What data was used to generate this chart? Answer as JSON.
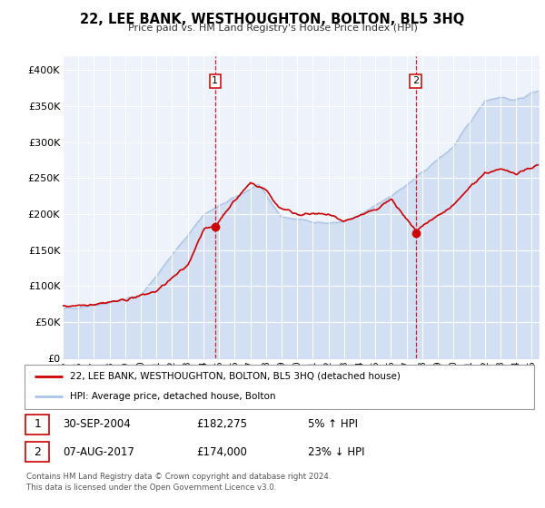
{
  "title": "22, LEE BANK, WESTHOUGHTON, BOLTON, BL5 3HQ",
  "subtitle": "Price paid vs. HM Land Registry's House Price Index (HPI)",
  "ylim": [
    0,
    420000
  ],
  "xlim_start": 1995.0,
  "xlim_end": 2025.5,
  "yticks": [
    0,
    50000,
    100000,
    150000,
    200000,
    250000,
    300000,
    350000,
    400000
  ],
  "ytick_labels": [
    "£0",
    "£50K",
    "£100K",
    "£150K",
    "£200K",
    "£250K",
    "£300K",
    "£350K",
    "£400K"
  ],
  "plot_bg_color": "#eef2fb",
  "hpi_color": "#aac4e8",
  "hpi_fill_color": "#c8d8f0",
  "price_color": "#cc0000",
  "marker1_x": 2004.75,
  "marker1_y": 182275,
  "marker2_x": 2017.58,
  "marker2_y": 174000,
  "annotation1_label": "1",
  "annotation1_date": "30-SEP-2004",
  "annotation1_price": "£182,275",
  "annotation1_hpi": "5% ↑ HPI",
  "annotation2_label": "2",
  "annotation2_date": "07-AUG-2017",
  "annotation2_price": "£174,000",
  "annotation2_hpi": "23% ↓ HPI",
  "legend_label_red": "22, LEE BANK, WESTHOUGHTON, BOLTON, BL5 3HQ (detached house)",
  "legend_label_blue": "HPI: Average price, detached house, Bolton",
  "footer_line1": "Contains HM Land Registry data © Crown copyright and database right 2024.",
  "footer_line2": "This data is licensed under the Open Government Licence v3.0."
}
